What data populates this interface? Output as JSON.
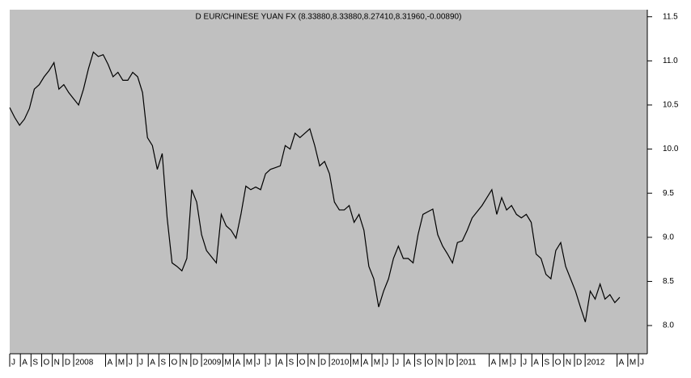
{
  "chart_data": {
    "type": "line",
    "title": "D EUR/CHINESE YUAN FX (8.33880,8.33880,8.27410,8.31960,-0.00890)",
    "color": "#000000",
    "values": [
      10.47,
      10.36,
      10.27,
      10.34,
      10.46,
      10.68,
      10.73,
      10.82,
      10.89,
      10.98,
      10.68,
      10.73,
      10.64,
      10.57,
      10.5,
      10.68,
      10.91,
      11.1,
      11.05,
      11.07,
      10.96,
      10.82,
      10.87,
      10.78,
      10.78,
      10.87,
      10.82,
      10.64,
      10.13,
      10.04,
      9.77,
      9.95,
      9.22,
      8.71,
      8.67,
      8.62,
      8.76,
      9.54,
      9.4,
      9.03,
      8.85,
      8.78,
      8.71,
      9.26,
      9.13,
      9.08,
      8.99,
      9.26,
      9.58,
      9.54,
      9.57,
      9.54,
      9.72,
      9.77,
      9.79,
      9.81,
      10.04,
      10.0,
      10.18,
      10.13,
      10.18,
      10.23,
      10.04,
      9.81,
      9.86,
      9.72,
      9.4,
      9.31,
      9.31,
      9.36,
      9.17,
      9.26,
      9.08,
      8.67,
      8.53,
      8.21,
      8.39,
      8.53,
      8.76,
      8.9,
      8.76,
      8.76,
      8.71,
      9.03,
      9.26,
      9.29,
      9.32,
      9.03,
      8.9,
      8.81,
      8.71,
      8.94,
      8.96,
      9.08,
      9.22,
      9.29,
      9.36,
      9.45,
      9.54,
      9.26,
      9.45,
      9.31,
      9.36,
      9.26,
      9.22,
      9.26,
      9.17,
      8.81,
      8.76,
      8.58,
      8.53,
      8.85,
      8.94,
      8.67,
      8.53,
      8.39,
      8.21,
      8.04,
      8.39,
      8.3,
      8.47,
      8.3,
      8.35,
      8.26,
      8.32
    ],
    "xlim": [
      0,
      129.6
    ],
    "xticks": [
      {
        "value": 0,
        "label": "J"
      },
      {
        "value": 2.17,
        "label": "A"
      },
      {
        "value": 4.33,
        "label": "S"
      },
      {
        "value": 6.5,
        "label": "O"
      },
      {
        "value": 8.66,
        "label": "N"
      },
      {
        "value": 10.83,
        "label": "D"
      },
      {
        "value": 13,
        "label": "2008"
      },
      {
        "value": 19.49,
        "label": "A"
      },
      {
        "value": 21.66,
        "label": "M"
      },
      {
        "value": 23.83,
        "label": "J"
      },
      {
        "value": 25.99,
        "label": "J"
      },
      {
        "value": 28.16,
        "label": "A"
      },
      {
        "value": 30.32,
        "label": "S"
      },
      {
        "value": 32.49,
        "label": "O"
      },
      {
        "value": 34.66,
        "label": "N"
      },
      {
        "value": 36.82,
        "label": "D"
      },
      {
        "value": 38.99,
        "label": "2009"
      },
      {
        "value": 43.32,
        "label": "M"
      },
      {
        "value": 45.49,
        "label": "A"
      },
      {
        "value": 47.65,
        "label": "M"
      },
      {
        "value": 49.82,
        "label": "J"
      },
      {
        "value": 51.98,
        "label": "J"
      },
      {
        "value": 54.15,
        "label": "A"
      },
      {
        "value": 56.32,
        "label": "S"
      },
      {
        "value": 58.48,
        "label": "O"
      },
      {
        "value": 60.65,
        "label": "N"
      },
      {
        "value": 62.81,
        "label": "D"
      },
      {
        "value": 64.98,
        "label": "2010"
      },
      {
        "value": 69.31,
        "label": "M"
      },
      {
        "value": 71.48,
        "label": "A"
      },
      {
        "value": 73.64,
        "label": "M"
      },
      {
        "value": 75.81,
        "label": "J"
      },
      {
        "value": 77.98,
        "label": "J"
      },
      {
        "value": 80.14,
        "label": "A"
      },
      {
        "value": 82.31,
        "label": "S"
      },
      {
        "value": 84.47,
        "label": "O"
      },
      {
        "value": 86.64,
        "label": "N"
      },
      {
        "value": 88.81,
        "label": "D"
      },
      {
        "value": 90.97,
        "label": "2011"
      },
      {
        "value": 97.47,
        "label": "A"
      },
      {
        "value": 99.64,
        "label": "M"
      },
      {
        "value": 101.8,
        "label": "J"
      },
      {
        "value": 103.97,
        "label": "J"
      },
      {
        "value": 106.13,
        "label": "A"
      },
      {
        "value": 108.3,
        "label": "S"
      },
      {
        "value": 110.47,
        "label": "O"
      },
      {
        "value": 112.63,
        "label": "N"
      },
      {
        "value": 114.8,
        "label": "D"
      },
      {
        "value": 116.96,
        "label": "2012"
      },
      {
        "value": 123.46,
        "label": "A"
      },
      {
        "value": 125.63,
        "label": "M"
      },
      {
        "value": 127.79,
        "label": "J"
      }
    ],
    "ylim": [
      7.68,
      11.58
    ],
    "yticks": [
      {
        "value": 8,
        "label": "8.0"
      },
      8.5,
      {
        "value": 9,
        "label": "9.0"
      },
      9.5,
      {
        "value": 10,
        "label": "10.0"
      },
      10.5,
      {
        "value": 11,
        "label": "11.0"
      },
      11.5
    ]
  }
}
